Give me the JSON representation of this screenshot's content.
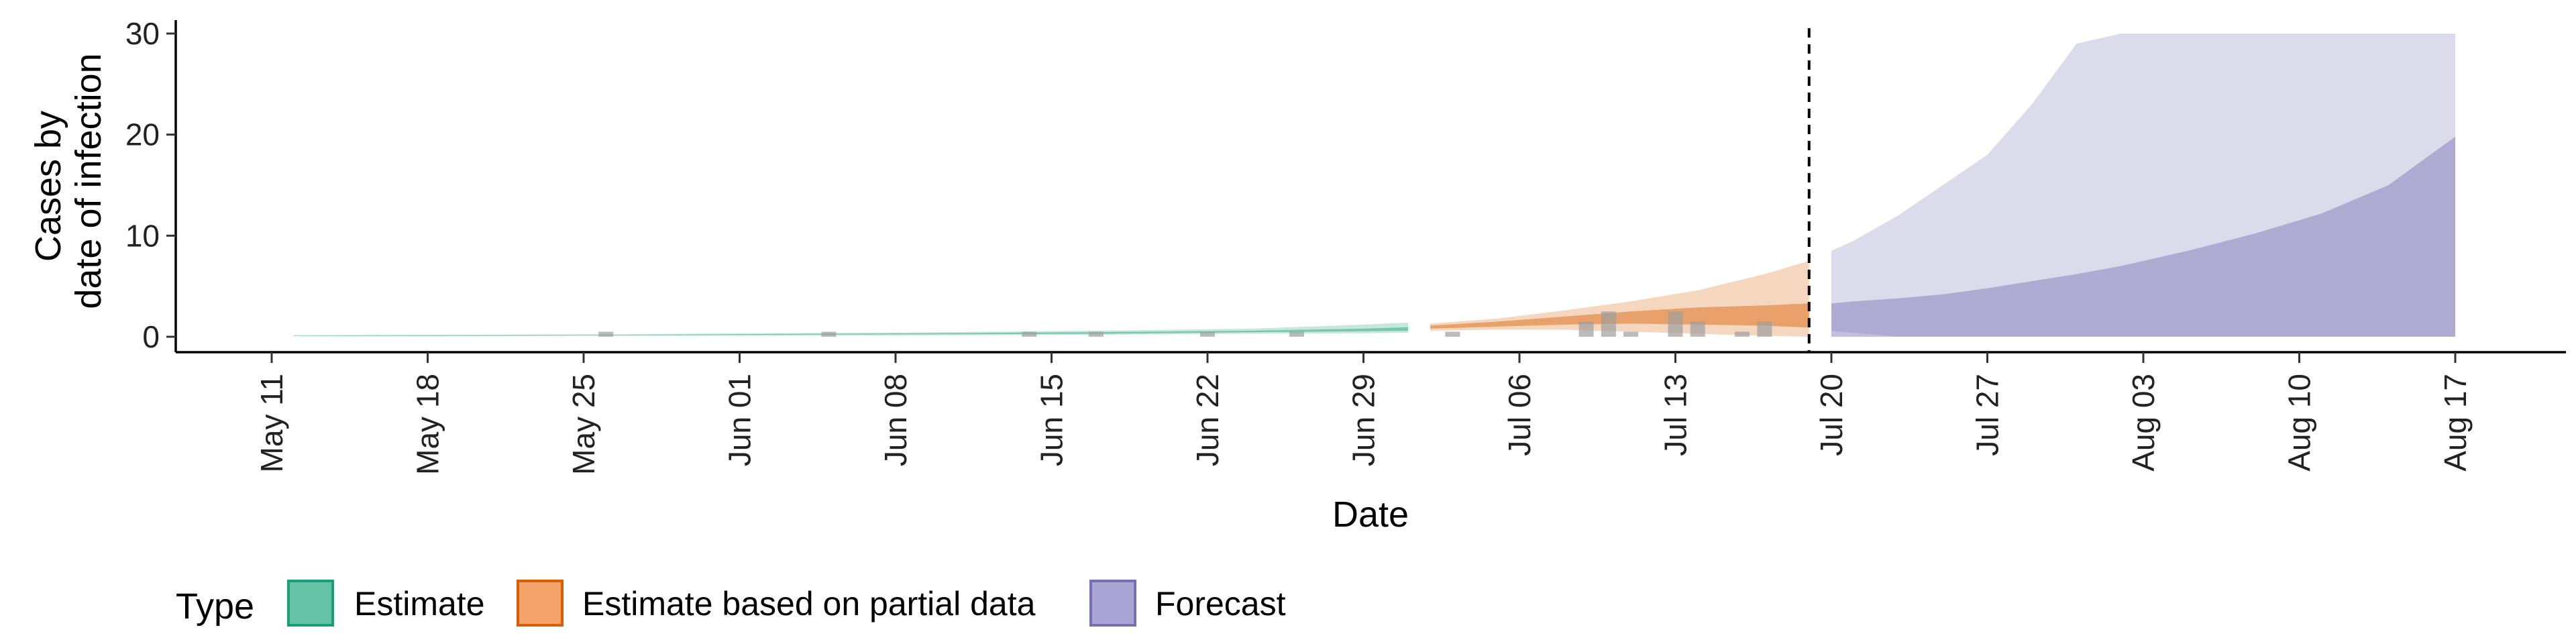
{
  "chart_data": {
    "type": "area",
    "xlabel": "Date",
    "ylabel_lines": [
      "Cases by",
      "date of infection"
    ],
    "ylim": [
      0,
      30
    ],
    "y_ticks": [
      0,
      10,
      20,
      30
    ],
    "x_range": [
      "2020-05-06",
      "2020-08-24"
    ],
    "x_ticks": [
      {
        "date": "2020-05-11",
        "label": "May 11"
      },
      {
        "date": "2020-05-18",
        "label": "May 18"
      },
      {
        "date": "2020-05-25",
        "label": "May 25"
      },
      {
        "date": "2020-06-01",
        "label": "Jun 01"
      },
      {
        "date": "2020-06-08",
        "label": "Jun 08"
      },
      {
        "date": "2020-06-15",
        "label": "Jun 15"
      },
      {
        "date": "2020-06-22",
        "label": "Jun 22"
      },
      {
        "date": "2020-06-29",
        "label": "Jun 29"
      },
      {
        "date": "2020-07-06",
        "label": "Jul 06"
      },
      {
        "date": "2020-07-13",
        "label": "Jul 13"
      },
      {
        "date": "2020-07-20",
        "label": "Jul 20"
      },
      {
        "date": "2020-07-27",
        "label": "Jul 27"
      },
      {
        "date": "2020-08-03",
        "label": "Aug 03"
      },
      {
        "date": "2020-08-10",
        "label": "Aug 10"
      },
      {
        "date": "2020-08-17",
        "label": "Aug 17"
      }
    ],
    "grid": false,
    "vline": {
      "date": "2020-07-19",
      "style": "dashed"
    },
    "legend": {
      "title": "Type",
      "placement": "bottom",
      "items": [
        {
          "label": "Estimate",
          "fill": "#66c2a5",
          "stroke": "#1b9e77"
        },
        {
          "label": "Estimate based on partial data",
          "fill": "#f4a36b",
          "stroke": "#d95f02"
        },
        {
          "label": "Forecast",
          "fill": "#a9a6d3",
          "stroke": "#7570b3"
        }
      ]
    },
    "series": [
      {
        "name": "Estimate",
        "color": "#1b9e77",
        "x": [
          "2020-05-12",
          "2020-05-20",
          "2020-05-27",
          "2020-06-03",
          "2020-06-10",
          "2020-06-17",
          "2020-06-24",
          "2020-06-29",
          "2020-07-01"
        ],
        "lower_90": [
          0.05,
          0.05,
          0.1,
          0.1,
          0.15,
          0.2,
          0.3,
          0.35,
          0.4
        ],
        "upper_90": [
          0.15,
          0.2,
          0.25,
          0.35,
          0.45,
          0.6,
          0.8,
          1.2,
          1.4
        ],
        "lower_50": [
          0.08,
          0.1,
          0.15,
          0.2,
          0.25,
          0.3,
          0.45,
          0.55,
          0.6
        ],
        "upper_50": [
          0.12,
          0.15,
          0.2,
          0.28,
          0.35,
          0.45,
          0.6,
          0.8,
          0.95
        ]
      },
      {
        "name": "Estimate based on partial data",
        "color": "#d95f02",
        "x": [
          "2020-07-02",
          "2020-07-05",
          "2020-07-08",
          "2020-07-11",
          "2020-07-14",
          "2020-07-17",
          "2020-07-19"
        ],
        "lower_90": [
          0.6,
          0.7,
          0.7,
          0.5,
          0.3,
          0.1,
          0.0
        ],
        "upper_90": [
          1.3,
          1.8,
          2.6,
          3.5,
          4.6,
          6.2,
          7.5
        ],
        "lower_50": [
          0.8,
          1.0,
          1.2,
          1.3,
          1.2,
          1.1,
          0.9
        ],
        "upper_50": [
          1.1,
          1.5,
          2.0,
          2.5,
          2.9,
          3.1,
          3.3
        ]
      },
      {
        "name": "Forecast",
        "color": "#7570b3",
        "x": [
          "2020-07-20",
          "2020-07-21",
          "2020-07-23",
          "2020-07-25",
          "2020-07-27",
          "2020-07-29",
          "2020-07-31",
          "2020-08-02",
          "2020-08-05",
          "2020-08-08",
          "2020-08-11",
          "2020-08-14",
          "2020-08-17"
        ],
        "lower_90": [
          0.6,
          0.4,
          0.0,
          0.0,
          0.0,
          0.0,
          0.0,
          0.0,
          0.0,
          0.0,
          0.0,
          0.0,
          0.0
        ],
        "upper_90": [
          8.5,
          9.5,
          12,
          15,
          18,
          23,
          29,
          30,
          30,
          30,
          30,
          30,
          30
        ],
        "lower_50": [
          0.0,
          0.0,
          0.0,
          0.0,
          0.0,
          0.0,
          0.0,
          0.0,
          0.0,
          0.0,
          0.0,
          0.0,
          0.0
        ],
        "upper_50": [
          3.3,
          3.5,
          3.8,
          4.2,
          4.8,
          5.5,
          6.2,
          7.0,
          8.5,
          10.2,
          12.2,
          15.0,
          19.8
        ]
      }
    ],
    "observed": {
      "color": "#9e9e9e",
      "x": [
        "2020-05-26",
        "2020-06-05",
        "2020-06-14",
        "2020-06-17",
        "2020-06-22",
        "2020-06-26",
        "2020-07-03",
        "2020-07-09",
        "2020-07-10",
        "2020-07-11",
        "2020-07-13",
        "2020-07-14",
        "2020-07-16",
        "2020-07-17"
      ],
      "y": [
        0.5,
        0.5,
        0.5,
        0.5,
        0.5,
        0.5,
        0.5,
        1.5,
        2.5,
        0.5,
        2.5,
        1.5,
        0.5,
        1.5
      ]
    }
  }
}
